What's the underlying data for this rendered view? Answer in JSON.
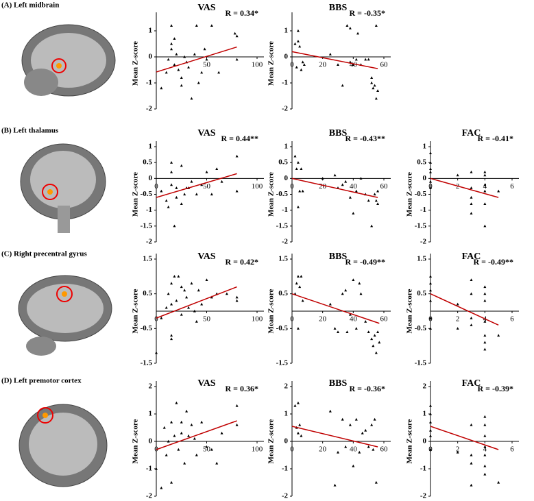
{
  "panels": [
    "(A) Left midbrain",
    "(B) Left thalamus",
    "(C) Right precentral gyrus",
    "(D) Left premotor cortex"
  ],
  "chart_data": [
    {
      "type": "scatter",
      "title": "VAS",
      "annotation": "R = 0.34*",
      "ylabel": "Mean Z-score",
      "xlim": [
        0,
        100
      ],
      "ylim": [
        -2,
        1.5
      ],
      "xticks": [
        50,
        100
      ],
      "yticks": [
        -2,
        -1,
        0,
        1
      ],
      "marker_color": "#000000",
      "x": [
        5,
        10,
        12,
        15,
        15,
        15,
        18,
        18,
        20,
        22,
        25,
        25,
        28,
        30,
        32,
        35,
        38,
        40,
        42,
        45,
        48,
        50,
        55,
        62,
        78,
        80,
        80
      ],
      "values": [
        -1.2,
        -0.6,
        -0.1,
        1.2,
        0.5,
        0.3,
        -0.3,
        0.7,
        0.1,
        -0.5,
        -0.8,
        -1.1,
        0,
        -0.2,
        -0.4,
        -1.6,
        0.1,
        1.2,
        -1.0,
        -0.6,
        0.3,
        -0.1,
        1.2,
        -0.6,
        0.9,
        0.8,
        -0.1
      ],
      "fit": {
        "color": "#c00000",
        "x": [
          0,
          80
        ],
        "values": [
          -0.58,
          0.38
        ]
      }
    },
    {
      "type": "scatter",
      "title": "BBS",
      "annotation": "R = -0.35*",
      "ylabel": "Mean Z-score",
      "xlim": [
        0,
        60
      ],
      "ylim": [
        -2,
        1.5
      ],
      "xticks": [
        0,
        20,
        40,
        60
      ],
      "yticks": [
        -2,
        -1,
        0,
        1
      ],
      "marker_color": "#000000",
      "x": [
        2,
        3,
        4,
        4,
        5,
        6,
        7,
        8,
        25,
        30,
        33,
        36,
        38,
        38,
        40,
        42,
        43,
        45,
        48,
        50,
        52,
        52,
        53,
        54,
        55,
        56,
        55
      ],
      "values": [
        0.5,
        -0.4,
        1.0,
        0.6,
        0.4,
        -0.5,
        -0.2,
        -0.3,
        0.1,
        -0.3,
        -1.1,
        1.2,
        1.1,
        -0.2,
        -0.3,
        -0.1,
        0.9,
        -0.3,
        -0.1,
        -0.1,
        -0.8,
        -1.0,
        -1.2,
        -1.1,
        -1.6,
        -1.3,
        1.2
      ],
      "fit": {
        "color": "#c00000",
        "x": [
          0,
          56
        ],
        "values": [
          0.2,
          -0.45
        ]
      }
    },
    {
      "type": "scatter",
      "title": "VAS",
      "annotation": "R = 0.44**",
      "ylabel": "Mean Z-score",
      "xlim": [
        0,
        100
      ],
      "ylim": [
        -2,
        1
      ],
      "xticks": [
        0,
        50,
        100
      ],
      "yticks": [
        -2,
        -1.5,
        -1,
        -0.5,
        0,
        0.5,
        1
      ],
      "marker_color": "#000000",
      "x": [
        5,
        10,
        12,
        15,
        15,
        15,
        18,
        20,
        20,
        25,
        25,
        28,
        30,
        32,
        35,
        40,
        45,
        50,
        55,
        60,
        65,
        80,
        80
      ],
      "values": [
        -0.4,
        -0.7,
        -0.9,
        0.5,
        0.2,
        -0.2,
        -1.5,
        -0.3,
        -0.6,
        0.4,
        -0.8,
        -0.5,
        -0.3,
        -0.3,
        -0.1,
        -0.5,
        -0.2,
        0.2,
        -0.5,
        0.3,
        -0.1,
        0.7,
        -0.4
      ],
      "fit": {
        "color": "#c00000",
        "x": [
          0,
          80
        ],
        "values": [
          -0.6,
          0.15
        ]
      }
    },
    {
      "type": "scatter",
      "title": "BBS",
      "annotation": "R = -0.43**",
      "ylabel": "Mean Z-score",
      "xlim": [
        0,
        60
      ],
      "ylim": [
        -2,
        1
      ],
      "xticks": [
        0,
        20,
        40,
        60
      ],
      "yticks": [
        -2,
        -1.5,
        -1,
        -0.5,
        0,
        0.5,
        1
      ],
      "marker_color": "#000000",
      "x": [
        2,
        3,
        4,
        4,
        5,
        6,
        7,
        20,
        28,
        30,
        33,
        35,
        38,
        40,
        42,
        45,
        48,
        50,
        52,
        54,
        55,
        56,
        56
      ],
      "values": [
        0.7,
        0.3,
        -0.9,
        0.5,
        -0.4,
        0.3,
        -0.4,
        0.0,
        0.1,
        -0.3,
        -0.2,
        -0.1,
        -0.6,
        -1.1,
        -0.4,
        0.0,
        -0.5,
        -0.7,
        -1.5,
        -0.5,
        -0.7,
        -0.8,
        -0.4
      ],
      "fit": {
        "color": "#c00000",
        "x": [
          0,
          56
        ],
        "values": [
          0,
          -0.6
        ]
      }
    },
    {
      "type": "scatter",
      "title": "FAC",
      "annotation": "R = -0.41*",
      "ylabel": "Mean Z-score",
      "xlim": [
        0,
        6
      ],
      "ylim": [
        -2,
        1
      ],
      "xticks": [
        0,
        2,
        4,
        6
      ],
      "yticks": [
        -2,
        -1.5,
        -1,
        -0.5,
        0,
        0.5,
        1
      ],
      "marker_color": "#000000",
      "x": [
        0,
        0,
        0,
        0,
        0,
        0,
        2,
        3,
        3,
        3,
        3,
        3,
        4,
        4,
        4,
        4,
        4,
        4,
        5
      ],
      "values": [
        0.2,
        0.3,
        0.5,
        0.8,
        -0.1,
        -0.3,
        0.1,
        -0.6,
        -0.8,
        -1.1,
        -0.3,
        0.2,
        0.2,
        0.1,
        -0.2,
        -0.4,
        -1.5,
        -0.8,
        -0.4
      ],
      "fit": {
        "color": "#c00000",
        "x": [
          0,
          5
        ],
        "values": [
          0,
          -0.6
        ]
      }
    },
    {
      "type": "scatter",
      "title": "VAS",
      "annotation": "R = 0.42*",
      "ylabel": "Mean Z-score",
      "xlim": [
        0,
        100
      ],
      "ylim": [
        -1.5,
        1.5
      ],
      "xticks": [
        0,
        50,
        100
      ],
      "yticks": [
        -1.5,
        -0.5,
        0.5,
        1.5
      ],
      "marker_color": "#000000",
      "x": [
        0,
        5,
        10,
        12,
        15,
        15,
        15,
        15,
        18,
        20,
        22,
        25,
        25,
        28,
        30,
        32,
        35,
        38,
        40,
        42,
        45,
        50,
        55,
        60,
        70,
        80,
        80
      ],
      "values": [
        -1.2,
        -0.2,
        0.1,
        0.5,
        0.2,
        0.8,
        -0.7,
        -0.8,
        1.0,
        0.3,
        1.0,
        0.7,
        -0.1,
        0.6,
        0.4,
        0.1,
        0.8,
        0.0,
        -0.3,
        0.6,
        0.2,
        0.9,
        0.4,
        0.5,
        0.5,
        0.3,
        0.4
      ],
      "fit": {
        "color": "#c00000",
        "x": [
          0,
          80
        ],
        "values": [
          -0.2,
          0.7
        ]
      }
    },
    {
      "type": "scatter",
      "title": "BBS",
      "annotation": "R = -0.49**",
      "ylabel": "Mean Z-score",
      "xlim": [
        0,
        60
      ],
      "ylim": [
        -1.5,
        1.5
      ],
      "xticks": [
        0,
        20,
        40,
        60
      ],
      "yticks": [
        -1.5,
        -0.5,
        0.5,
        1.5
      ],
      "marker_color": "#000000",
      "x": [
        2,
        3,
        4,
        4,
        5,
        6,
        7,
        25,
        28,
        30,
        33,
        35,
        36,
        38,
        40,
        42,
        44,
        45,
        48,
        50,
        52,
        53,
        54,
        55,
        56,
        57
      ],
      "values": [
        0.5,
        0.8,
        1.0,
        -0.5,
        0.7,
        1.0,
        0.3,
        0.2,
        -0.5,
        -0.6,
        0.5,
        0.6,
        -0.6,
        -0.1,
        0.9,
        -0.5,
        0.8,
        0.5,
        -0.3,
        -0.6,
        -0.8,
        -1.0,
        -0.7,
        -1.2,
        -0.6,
        -0.9
      ],
      "fit": {
        "color": "#c00000",
        "x": [
          0,
          57
        ],
        "values": [
          0.5,
          -0.35
        ]
      }
    },
    {
      "type": "scatter",
      "title": "FAC",
      "annotation": "R = -0.49**",
      "ylabel": "Mean Z-score",
      "xlim": [
        0,
        6
      ],
      "ylim": [
        -1.5,
        1.5
      ],
      "xticks": [
        0,
        2,
        4,
        6
      ],
      "yticks": [
        -1.5,
        -0.5,
        0.5,
        1.5
      ],
      "marker_color": "#000000",
      "x": [
        0,
        0,
        0,
        0,
        0,
        0,
        2,
        2,
        3,
        3,
        3,
        3,
        4,
        4,
        4,
        4,
        4,
        4,
        4,
        5
      ],
      "values": [
        1.0,
        0.8,
        0.6,
        0.3,
        -0.2,
        -0.5,
        0.2,
        -0.5,
        0.9,
        -0.2,
        0.5,
        -0.4,
        0.7,
        0.5,
        0.3,
        -0.3,
        -0.7,
        -0.9,
        -1.1,
        -0.7
      ],
      "fit": {
        "color": "#c00000",
        "x": [
          0,
          5
        ],
        "values": [
          0.5,
          -0.4
        ]
      }
    },
    {
      "type": "scatter",
      "title": "VAS",
      "annotation": "R = 0.36*",
      "ylabel": "Mean Z-score",
      "xlim": [
        0,
        100
      ],
      "ylim": [
        -2,
        2
      ],
      "xticks": [
        0,
        50,
        100
      ],
      "yticks": [
        -2,
        -1,
        0,
        1,
        2
      ],
      "marker_color": "#000000",
      "x": [
        0,
        5,
        8,
        10,
        12,
        15,
        15,
        18,
        20,
        22,
        25,
        25,
        28,
        30,
        32,
        35,
        38,
        40,
        45,
        50,
        55,
        60,
        65,
        80,
        80
      ],
      "values": [
        -1.0,
        -1.7,
        0.5,
        -0.5,
        0.0,
        -1.5,
        0.7,
        0.2,
        1.4,
        -0.3,
        0.7,
        0.3,
        -0.8,
        1.1,
        0.2,
        0.6,
        0.1,
        -0.5,
        0.7,
        -0.2,
        -0.3,
        -0.8,
        0.3,
        1.3,
        0.6
      ],
      "fit": {
        "color": "#c00000",
        "x": [
          0,
          80
        ],
        "values": [
          -0.3,
          0.75
        ]
      }
    },
    {
      "type": "scatter",
      "title": "BBS",
      "annotation": "R = -0.36*",
      "ylabel": "Mean Z-score",
      "xlim": [
        0,
        60
      ],
      "ylim": [
        -2,
        2
      ],
      "xticks": [
        0,
        20,
        40,
        60
      ],
      "yticks": [
        -2,
        -1,
        0,
        1,
        2
      ],
      "marker_color": "#000000",
      "x": [
        2,
        3,
        4,
        4,
        5,
        6,
        25,
        28,
        30,
        33,
        35,
        38,
        40,
        42,
        44,
        46,
        48,
        50,
        52,
        53,
        54,
        55
      ],
      "values": [
        1.3,
        0.5,
        1.4,
        0.3,
        0.6,
        0.2,
        1.1,
        -1.6,
        -0.4,
        0.8,
        -0.2,
        0.6,
        -0.9,
        0.8,
        -0.4,
        0.3,
        0.4,
        -0.2,
        0.6,
        -0.3,
        0.8,
        -1.5
      ],
      "fit": {
        "color": "#c00000",
        "x": [
          0,
          56
        ],
        "values": [
          0.55,
          -0.2
        ]
      }
    },
    {
      "type": "scatter",
      "title": "FAC",
      "annotation": "R = -0.39*",
      "ylabel": "Mean Z-score",
      "xlim": [
        0,
        6
      ],
      "ylim": [
        -2,
        2
      ],
      "xticks": [
        0,
        2,
        4,
        6
      ],
      "yticks": [
        -2,
        -1,
        0,
        1,
        2
      ],
      "marker_color": "#000000",
      "x": [
        0,
        0,
        0,
        0,
        0,
        0,
        2,
        3,
        3,
        3,
        3,
        4,
        4,
        4,
        4,
        4,
        4,
        4,
        5
      ],
      "values": [
        1.3,
        1.0,
        0.7,
        0.4,
        0.2,
        -0.3,
        -0.4,
        0.6,
        -0.5,
        -1.6,
        -0.8,
        0.9,
        0.6,
        0.2,
        -0.2,
        -0.5,
        -0.9,
        -1.2,
        -1.5
      ],
      "fit": {
        "color": "#c00000",
        "x": [
          0,
          5
        ],
        "values": [
          0.55,
          -0.3
        ]
      }
    }
  ]
}
